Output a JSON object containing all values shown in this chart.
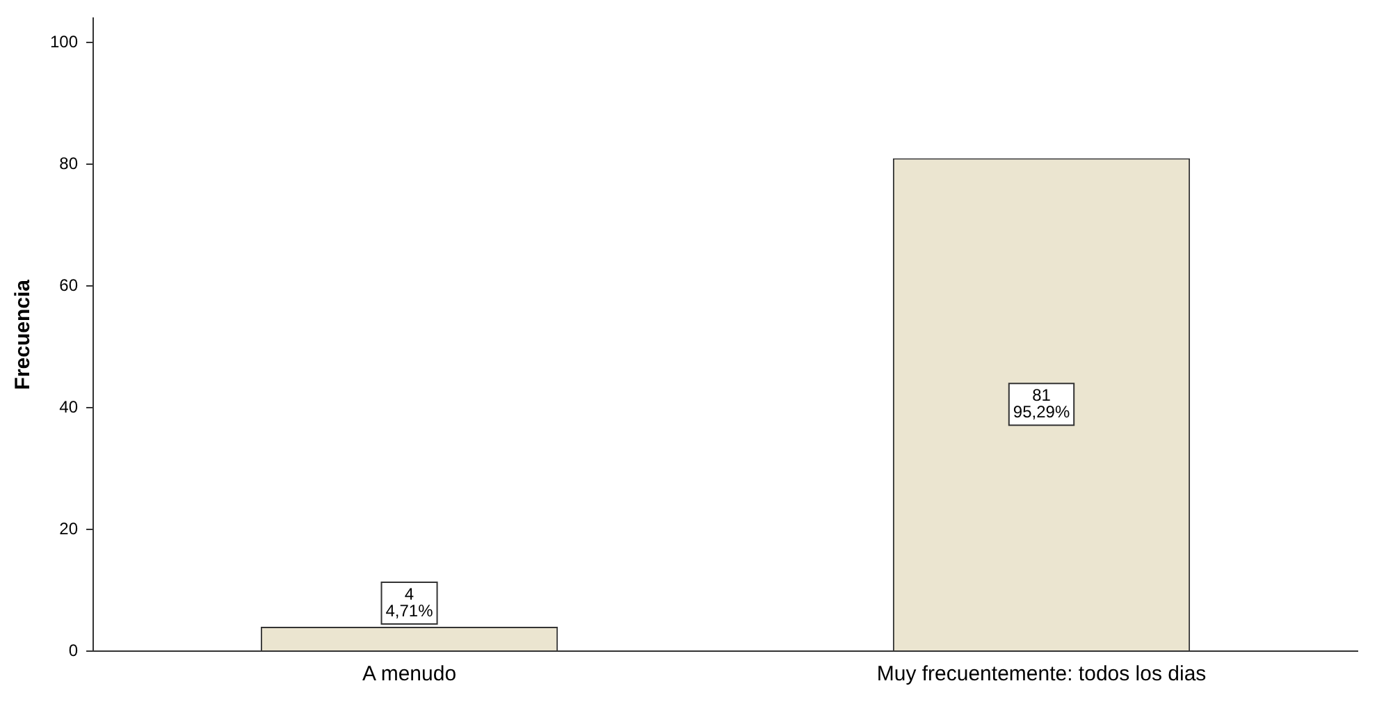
{
  "chart_data": {
    "type": "bar",
    "ylabel": "Frecuencia",
    "categories": [
      "A menudo",
      "Muy frecuentemente: todos los dias"
    ],
    "values": [
      4,
      81
    ],
    "value_labels": [
      "4\n4,71%",
      "81\n95,29%"
    ],
    "color": "#ebe5d0",
    "ylim": [
      0,
      104
    ],
    "yticks": [
      0,
      20,
      40,
      60,
      80,
      100
    ],
    "grid": false,
    "legend": false
  }
}
